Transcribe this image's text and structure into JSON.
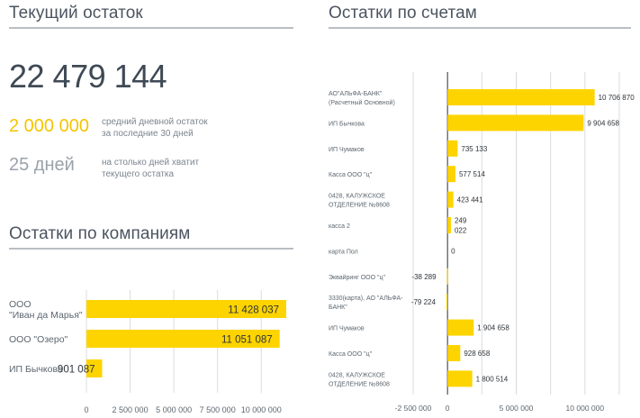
{
  "current_balance": {
    "title": "Текущий остаток",
    "total": "22 479 144",
    "avg_value": "2 000 000",
    "avg_desc_line1": "средний дневной остаток",
    "avg_desc_line2": "за последние 30 дней",
    "days_value": "25 дней",
    "days_desc_line1": "на столько дней хватит",
    "days_desc_line2": "текущего остатка"
  },
  "accounts": {
    "title": "Остатки по счетам"
  },
  "companies": {
    "title": "Остатки по компаниям"
  },
  "colors": {
    "bar": "#fdd400",
    "grid": "#d8dce0",
    "axis": "#2a2f34",
    "title": "#4b5560",
    "label": "#5c666f"
  },
  "chart_data": [
    {
      "id": "companies",
      "type": "bar",
      "orientation": "horizontal",
      "title": "Остатки по компаниям",
      "categories": [
        [
          "ООО",
          "\"Иван да Марья\""
        ],
        [
          "ООО \"Озеро\""
        ],
        [
          "ИП Бычкова"
        ]
      ],
      "values": [
        11428037,
        11051087,
        901087
      ],
      "value_labels": [
        "11 428 037",
        "11 051 087",
        "901 087"
      ],
      "xlim": [
        0,
        11428037
      ],
      "ticks": [
        0,
        2500000,
        5000000,
        7500000,
        10000000
      ],
      "tick_labels": [
        "0",
        "2 500 000",
        "5 000 000",
        "7 500 000",
        "10 000 000"
      ],
      "grid": true
    },
    {
      "id": "accounts",
      "type": "bar",
      "orientation": "horizontal",
      "title": "Остатки по счетам",
      "categories": [
        [
          "АО\"АЛЬФА-БАНК\"",
          "(Расчетный Основной)"
        ],
        [
          "ИП Бычкова"
        ],
        [
          "ИП Чумаков"
        ],
        [
          "Касса ООО \"ц\""
        ],
        [
          "0428, КАЛУЖСКОЕ",
          "ОТДЕЛЕНИЕ №8608"
        ],
        [
          "касса 2"
        ],
        [
          "карта Пол"
        ],
        [
          "Эквайринг ООО \"ц\""
        ],
        [
          "3330(карта), АО \"АЛЬФА-",
          "БАНК\""
        ],
        [
          "ИП Чумаков"
        ],
        [
          "Касса ООО \"ц\""
        ],
        [
          "0428, КАЛУЖСКОЕ",
          "ОТДЕЛЕНИЕ №8608"
        ]
      ],
      "values": [
        10706870,
        9904658,
        735133,
        577514,
        423441,
        249022,
        0,
        -38289,
        -79224,
        1904658,
        928658,
        1800514
      ],
      "value_labels": [
        [
          "10 706 870"
        ],
        [
          "9 904 658"
        ],
        [
          "735 133"
        ],
        [
          "577 514"
        ],
        [
          "423 441"
        ],
        [
          "249",
          "022"
        ],
        [
          "0"
        ],
        [
          "-38 289"
        ],
        [
          "-79 224"
        ],
        [
          "1 904 658"
        ],
        [
          "928 658"
        ],
        [
          "1 800 514"
        ]
      ],
      "xlim": [
        -2500000,
        12500000
      ],
      "ticks": [
        -2500000,
        0,
        2500000,
        5000000,
        7500000,
        10000000,
        12500000
      ],
      "tick_labels": [
        "-2 500 000",
        "0",
        "",
        "5 000 000",
        "",
        "10 000 000",
        ""
      ],
      "grid": true
    }
  ]
}
